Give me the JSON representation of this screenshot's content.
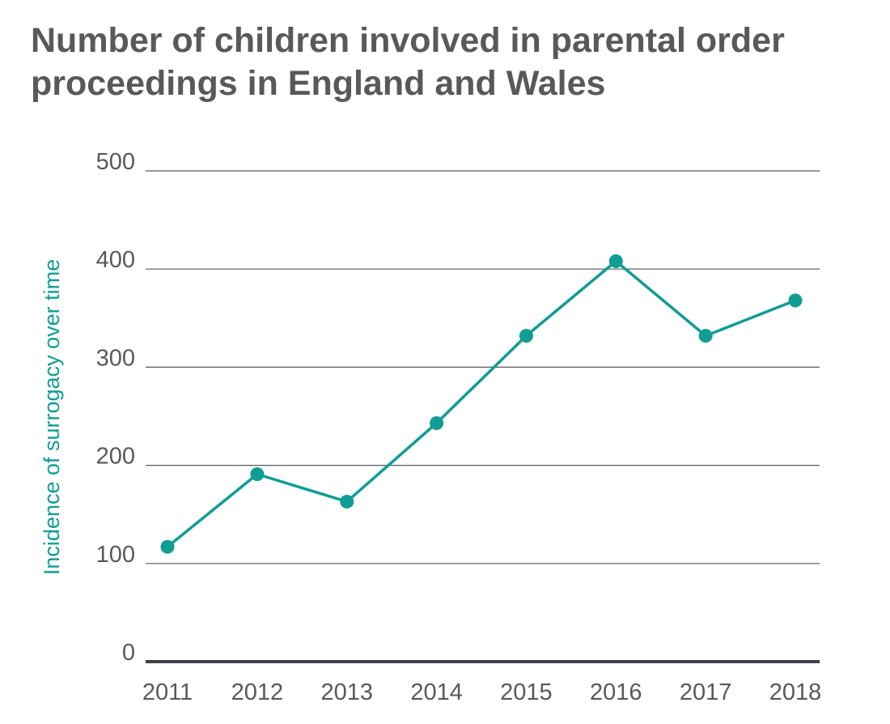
{
  "chart_data": {
    "type": "line",
    "title": "Number of children involved in parental order proceedings in England and Wales",
    "xlabel": "",
    "ylabel": "Incidence of surrogacy over time",
    "categories": [
      "2011",
      "2012",
      "2013",
      "2014",
      "2015",
      "2016",
      "2017",
      "2018"
    ],
    "series": [
      {
        "values": [
          117,
          191,
          163,
          243,
          332,
          408,
          332,
          368
        ]
      }
    ],
    "y_ticks": [
      0,
      100,
      200,
      300,
      400,
      500
    ],
    "ylim": [
      0,
      500
    ],
    "grid": true,
    "legend": "none",
    "colors": {
      "line": "#0f9d94",
      "grid": "#58595b",
      "baseline": "#3d4148",
      "text": "#58595b",
      "axis_title": "#0f9d94"
    }
  }
}
